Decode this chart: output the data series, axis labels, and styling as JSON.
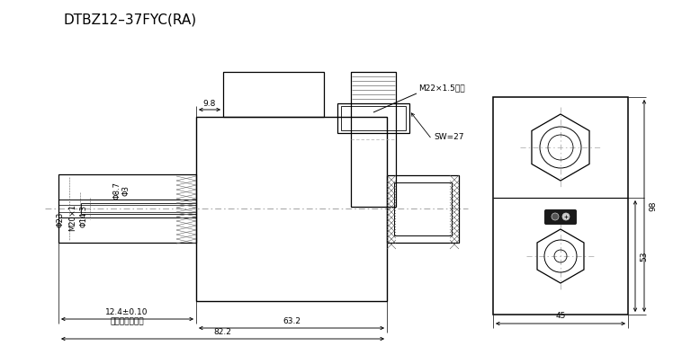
{
  "title": "DTBZ12–37FYC(RA)",
  "bg_color": "#ffffff",
  "lc": "#000000",
  "annotations": {
    "M22_thread": "M22×1.5螺纹",
    "SW27": "SW=27",
    "dim_9_8": "9.8",
    "dim_phi8_7": "Φ8.7",
    "dim_phi3": "Φ3",
    "dim_phi23": "Φ23",
    "dim_M20x1": "M20×1",
    "dim_phi14_3": "Φ14.3",
    "dim_12_4": "12.4±0.10",
    "label_elec": "电磁铁得电位置",
    "dim_63_2": "63.2",
    "dim_82_2": "82.2",
    "dim_98": "98",
    "dim_53": "53",
    "dim_45": "45"
  }
}
